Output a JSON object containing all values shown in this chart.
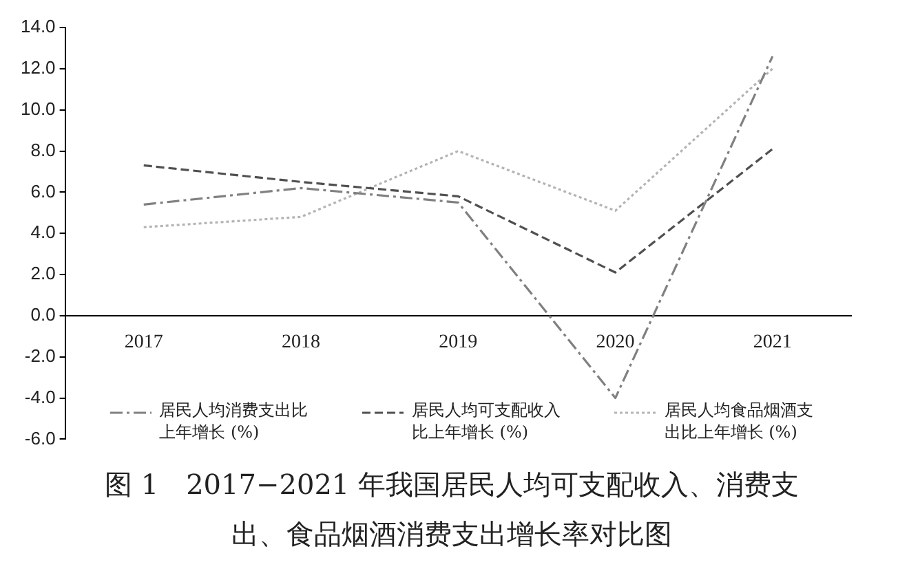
{
  "chart_data": {
    "type": "line",
    "title": "图 1　2017−2021 年我国居民人均可支配收入、消费支出、食品烟酒消费支出增长率对比图",
    "categories": [
      "2017",
      "2018",
      "2019",
      "2020",
      "2021"
    ],
    "series": [
      {
        "name": "居民人均消费支出比上年增长 (%)",
        "color": "#808080",
        "line_style": "dashdot",
        "values": [
          5.4,
          6.2,
          5.5,
          -4.0,
          12.6
        ]
      },
      {
        "name": "居民人均可支配收入比上年增长 (%)",
        "color": "#505050",
        "line_style": "dashed",
        "values": [
          7.3,
          6.5,
          5.8,
          2.1,
          8.1
        ]
      },
      {
        "name": "居民人均食品烟酒支出比上年增长 (%)",
        "color": "#b4b4b4",
        "line_style": "dotted",
        "values": [
          4.3,
          4.8,
          8.0,
          5.1,
          12.0
        ]
      }
    ],
    "ylim": [
      -6,
      14
    ],
    "yticks": [
      {
        "value": -6,
        "label": "-6.0"
      },
      {
        "value": -4,
        "label": "-4.0"
      },
      {
        "value": -2,
        "label": "-2.0"
      },
      {
        "value": 0,
        "label": "0.0"
      },
      {
        "value": 2,
        "label": "2.0"
      },
      {
        "value": 4,
        "label": "4.0"
      },
      {
        "value": 6,
        "label": "6.0"
      },
      {
        "value": 8,
        "label": "8.0"
      },
      {
        "value": 10,
        "label": "10.0"
      },
      {
        "value": 12,
        "label": "12.0"
      },
      {
        "value": 14,
        "label": "14.0"
      }
    ],
    "grid": false,
    "legend": "bottom",
    "marker": "none"
  }
}
